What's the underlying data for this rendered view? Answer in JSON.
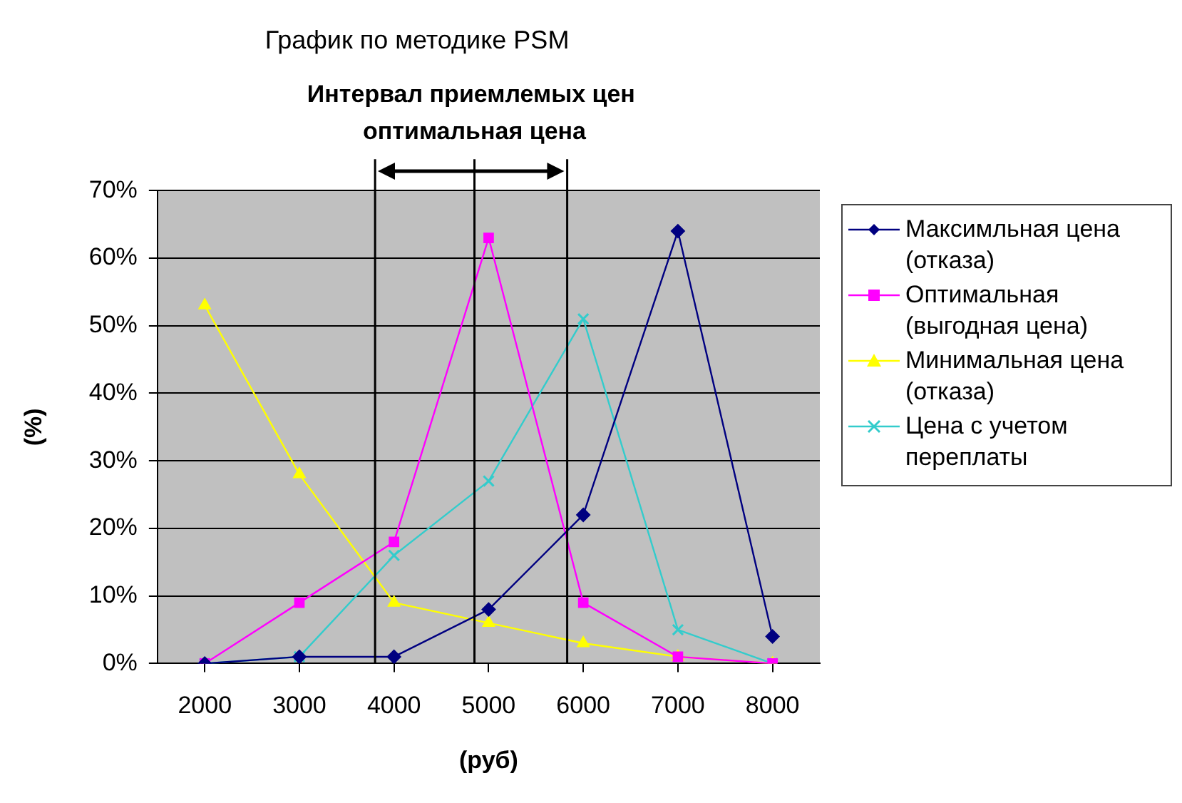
{
  "chart_data": {
    "type": "line",
    "title": "График по методике PSM",
    "xlabel": "(руб)",
    "ylabel": "(%)",
    "x": [
      2000,
      3000,
      4000,
      5000,
      6000,
      7000,
      8000
    ],
    "series": [
      {
        "name": "Максимльная цена (отказа)",
        "color": "#000080",
        "marker": "diamond",
        "values": [
          0,
          1,
          1,
          8,
          22,
          64,
          4
        ]
      },
      {
        "name": "Оптимальная (выгодная цена)",
        "color": "#ff00ff",
        "marker": "square",
        "values": [
          0,
          9,
          18,
          63,
          9,
          1,
          0
        ]
      },
      {
        "name": "Минимальная цена (отказа)",
        "color": "#ffff00",
        "marker": "triangle",
        "values": [
          53,
          28,
          9,
          6,
          3,
          1,
          0
        ]
      },
      {
        "name": "Цена с учетом переплаты",
        "color": "#33cccc",
        "marker": "cross",
        "values": [
          0,
          1,
          16,
          27,
          51,
          5,
          0
        ]
      }
    ],
    "xlim": [
      1500,
      8500
    ],
    "xticks": [
      2000,
      3000,
      4000,
      5000,
      6000,
      7000,
      8000
    ],
    "ylim": [
      0,
      70
    ],
    "yticks": [
      {
        "value": 0,
        "label": "0%"
      },
      {
        "value": 10,
        "label": "10%"
      },
      {
        "value": 20,
        "label": "20%"
      },
      {
        "value": 30,
        "label": "30%"
      },
      {
        "value": 40,
        "label": "40%"
      },
      {
        "value": 50,
        "label": "50%"
      },
      {
        "value": 60,
        "label": "60%"
      },
      {
        "value": 70,
        "label": "70%"
      }
    ],
    "annotations": [
      "Интервал приемлемых цен"
    ],
    "ref_lines": [
      {
        "axis": "x",
        "value": 3800
      },
      {
        "axis": "x",
        "value": 4850,
        "label": "оптимальная цена"
      },
      {
        "axis": "x",
        "value": 5830
      }
    ],
    "grid": "y",
    "legend": "right",
    "line_style": "solid"
  }
}
